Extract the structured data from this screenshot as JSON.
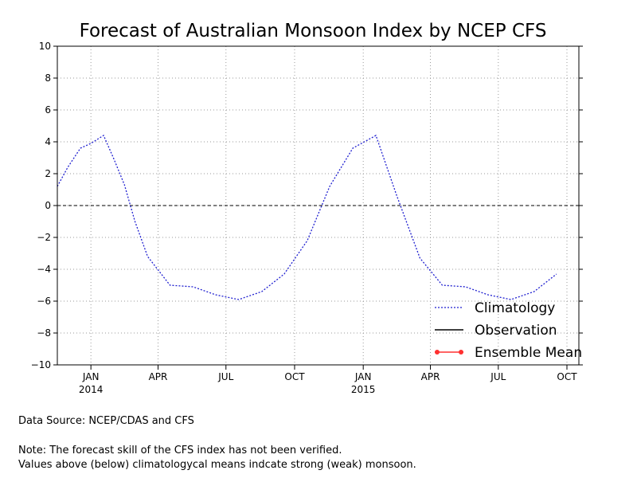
{
  "chart_data": {
    "type": "line",
    "title": "Forecast of Australian Monsoon Index by NCEP CFS",
    "xlabel": "",
    "ylabel": "",
    "ylim": [
      -10,
      10
    ],
    "yticks": [
      10,
      8,
      6,
      4,
      2,
      0,
      -2,
      -4,
      -6,
      -8,
      -10
    ],
    "xlim": [
      "2013-12-01",
      "2015-10-31"
    ],
    "xticks": [
      {
        "date": "2014-01-15",
        "month": "JAN",
        "year": "2014"
      },
      {
        "date": "2014-04-15",
        "month": "APR",
        "year": ""
      },
      {
        "date": "2014-07-15",
        "month": "JUL",
        "year": ""
      },
      {
        "date": "2014-10-15",
        "month": "OCT",
        "year": ""
      },
      {
        "date": "2015-01-15",
        "month": "JAN",
        "year": "2015"
      },
      {
        "date": "2015-04-15",
        "month": "APR",
        "year": ""
      },
      {
        "date": "2015-07-15",
        "month": "JUL",
        "year": ""
      },
      {
        "date": "2015-10-15",
        "month": "OCT",
        "year": ""
      }
    ],
    "grid": true,
    "zero_line": true,
    "legend": {
      "placement": "bottom-right",
      "entries": [
        {
          "label": "Climatology",
          "color": "#1f1fd0",
          "style": "dotted"
        },
        {
          "label": "Observation",
          "color": "#000000",
          "style": "solid"
        },
        {
          "label": "Ensemble Mean",
          "color": "#ff3030",
          "style": "solid-with-markers"
        }
      ]
    },
    "series": [
      {
        "name": "Climatology",
        "color": "#1f1fd0",
        "points": [
          {
            "x": "2013-12-01",
            "y": 1.2
          },
          {
            "x": "2013-12-15",
            "y": 2.4
          },
          {
            "x": "2014-01-01",
            "y": 3.6
          },
          {
            "x": "2014-01-15",
            "y": 3.9
          },
          {
            "x": "2014-02-01",
            "y": 4.4
          },
          {
            "x": "2014-02-15",
            "y": 2.9
          },
          {
            "x": "2014-03-01",
            "y": 1.3
          },
          {
            "x": "2014-03-15",
            "y": -1.0
          },
          {
            "x": "2014-04-01",
            "y": -3.2
          },
          {
            "x": "2014-05-01",
            "y": -5.0
          },
          {
            "x": "2014-06-01",
            "y": -5.1
          },
          {
            "x": "2014-07-01",
            "y": -5.6
          },
          {
            "x": "2014-08-01",
            "y": -5.9
          },
          {
            "x": "2014-09-01",
            "y": -5.4
          },
          {
            "x": "2014-10-01",
            "y": -4.3
          },
          {
            "x": "2014-11-01",
            "y": -2.2
          },
          {
            "x": "2014-12-01",
            "y": 1.2
          },
          {
            "x": "2015-01-01",
            "y": 3.6
          },
          {
            "x": "2015-02-01",
            "y": 4.4
          },
          {
            "x": "2015-03-01",
            "y": 0.6
          },
          {
            "x": "2015-04-01",
            "y": -3.3
          },
          {
            "x": "2015-05-01",
            "y": -5.0
          },
          {
            "x": "2015-06-01",
            "y": -5.1
          },
          {
            "x": "2015-07-01",
            "y": -5.6
          },
          {
            "x": "2015-08-01",
            "y": -5.9
          },
          {
            "x": "2015-09-01",
            "y": -5.4
          },
          {
            "x": "2015-10-01",
            "y": -4.3
          }
        ]
      },
      {
        "name": "Observation",
        "color": "#000000",
        "points": []
      },
      {
        "name": "Ensemble Mean",
        "color": "#ff3030",
        "points": []
      }
    ]
  },
  "notes": {
    "source": "Data Source:  NCEP/CDAS and CFS",
    "line1": "Note: The forecast skill of the CFS index has not been verified.",
    "line2": "Values above (below) climatologycal means indcate strong (weak) monsoon."
  }
}
